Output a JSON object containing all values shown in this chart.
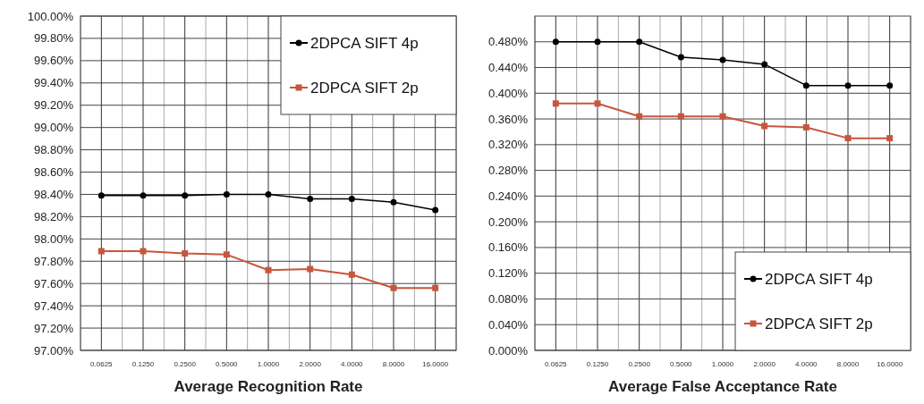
{
  "chart_data": [
    {
      "type": "line",
      "categories": [
        "0.0625",
        "0.1250",
        "0.2500",
        "0.5000",
        "1.0000",
        "2.0000",
        "4.0000",
        "8.0000",
        "16.0000"
      ],
      "xlabel": "Average Recognition Rate",
      "ylim": [
        97,
        100
      ],
      "yticks": [
        {
          "value": 97,
          "label": "97.00%"
        },
        {
          "value": 97.2,
          "label": "97.20%"
        },
        {
          "value": 97.4,
          "label": "97.40%"
        },
        {
          "value": 97.6,
          "label": "97.60%"
        },
        {
          "value": 97.8,
          "label": "97.80%"
        },
        {
          "value": 98,
          "label": "98.00%"
        },
        {
          "value": 98.2,
          "label": "98.20%"
        },
        {
          "value": 98.4,
          "label": "98.40%"
        },
        {
          "value": 98.6,
          "label": "98.60%"
        },
        {
          "value": 98.8,
          "label": "98.80%"
        },
        {
          "value": 99,
          "label": "99.00%"
        },
        {
          "value": 99.2,
          "label": "99.20%"
        },
        {
          "value": 99.4,
          "label": "99.40%"
        },
        {
          "value": 99.6,
          "label": "99.60%"
        },
        {
          "value": 99.8,
          "label": "99.80%"
        },
        {
          "value": 100,
          "label": "100.00%"
        }
      ],
      "grid": true,
      "legend": "top right",
      "series": [
        {
          "name": "2DPCA SIFT 4p",
          "color": "#000000",
          "marker": "circle",
          "values": [
            98.39,
            98.39,
            98.39,
            98.4,
            98.4,
            98.36,
            98.36,
            98.33,
            98.26
          ]
        },
        {
          "name": "2DPCA SIFT 2p",
          "color": "#c8553d",
          "marker": "square",
          "values": [
            97.89,
            97.89,
            97.87,
            97.86,
            97.72,
            97.73,
            97.68,
            97.56,
            97.56
          ]
        }
      ]
    },
    {
      "type": "line",
      "categories": [
        "0.0625",
        "0.1250",
        "0.2500",
        "0.5000",
        "1.0000",
        "2.0000",
        "4.0000",
        "8.0000",
        "16.0000"
      ],
      "xlabel": "Average False Acceptance Rate",
      "ylim": [
        0,
        0.52
      ],
      "yticks": [
        {
          "value": 0,
          "label": "0.000%"
        },
        {
          "value": 0.04,
          "label": "0.040%"
        },
        {
          "value": 0.08,
          "label": "0.080%"
        },
        {
          "value": 0.12,
          "label": "0.120%"
        },
        {
          "value": 0.16,
          "label": "0.160%"
        },
        {
          "value": 0.2,
          "label": "0.200%"
        },
        {
          "value": 0.24,
          "label": "0.240%"
        },
        {
          "value": 0.28,
          "label": "0.280%"
        },
        {
          "value": 0.32,
          "label": "0.320%"
        },
        {
          "value": 0.36,
          "label": "0.360%"
        },
        {
          "value": 0.4,
          "label": "0.400%"
        },
        {
          "value": 0.44,
          "label": "0.440%"
        },
        {
          "value": 0.48,
          "label": "0.480%"
        }
      ],
      "grid": true,
      "legend": "bottom right",
      "series": [
        {
          "name": "2DPCA SIFT 4p",
          "color": "#000000",
          "marker": "circle",
          "values": [
            0.48,
            0.48,
            0.48,
            0.456,
            0.452,
            0.445,
            0.412,
            0.412,
            0.412
          ]
        },
        {
          "name": "2DPCA SIFT 2p",
          "color": "#c8553d",
          "marker": "square",
          "values": [
            0.384,
            0.384,
            0.364,
            0.364,
            0.364,
            0.349,
            0.347,
            0.33,
            0.33
          ]
        }
      ]
    }
  ]
}
